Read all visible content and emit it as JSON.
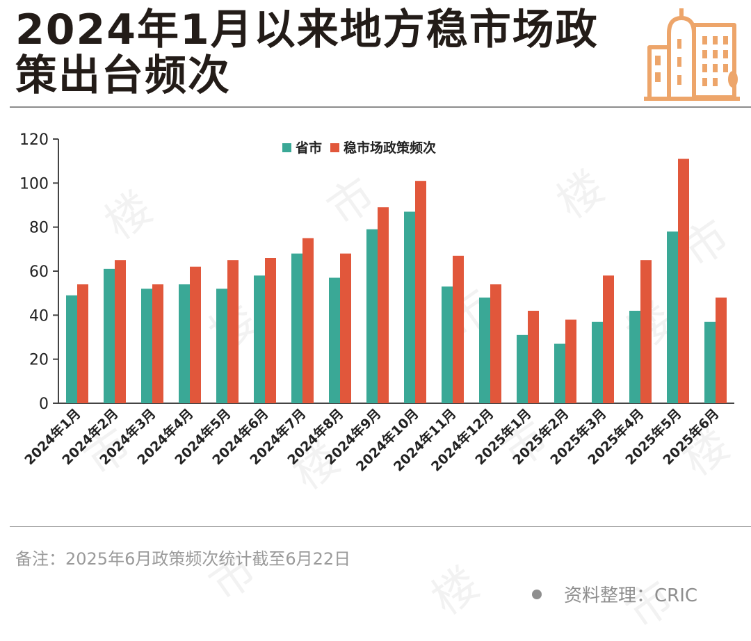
{
  "header": {
    "title_line1": "2024年1月以来地方稳市场政",
    "title_line2": "策出台频次"
  },
  "logo_icon": "city-buildings-icon",
  "colors": {
    "province_city": "#3aa896",
    "policy_count": "#e1573b",
    "axis": "#444444",
    "title": "#231c18",
    "logo": "#eda56a"
  },
  "chart_data": {
    "type": "bar",
    "categories": [
      "2024年1月",
      "2024年2月",
      "2024年3月",
      "2024年4月",
      "2024年5月",
      "2024年6月",
      "2024年7月",
      "2024年8月",
      "2024年9月",
      "2024年10月",
      "2024年11月",
      "2024年12月",
      "2025年1月",
      "2025年2月",
      "2025年3月",
      "2025年4月",
      "2025年5月",
      "2025年6月"
    ],
    "series": [
      {
        "name": "省市",
        "values": [
          49,
          61,
          52,
          54,
          52,
          58,
          68,
          57,
          79,
          87,
          53,
          48,
          31,
          27,
          37,
          42,
          78,
          37
        ]
      },
      {
        "name": "稳市场政策频次",
        "values": [
          54,
          65,
          54,
          62,
          65,
          66,
          75,
          68,
          89,
          101,
          67,
          54,
          42,
          38,
          58,
          65,
          111,
          48
        ]
      }
    ],
    "ylim": [
      0,
      120
    ],
    "yticks": [
      0,
      20,
      40,
      60,
      80,
      100,
      120
    ],
    "legend_position": "top-center",
    "grid": false
  },
  "footer": {
    "note": "备注：2025年6月政策频次统计截至6月22日",
    "source": "资料整理：CRIC"
  },
  "watermark": "市楼",
  "watermark_chars": [
    "楼",
    "市",
    "楼",
    "市",
    "楼",
    "市",
    "楼",
    "市"
  ]
}
